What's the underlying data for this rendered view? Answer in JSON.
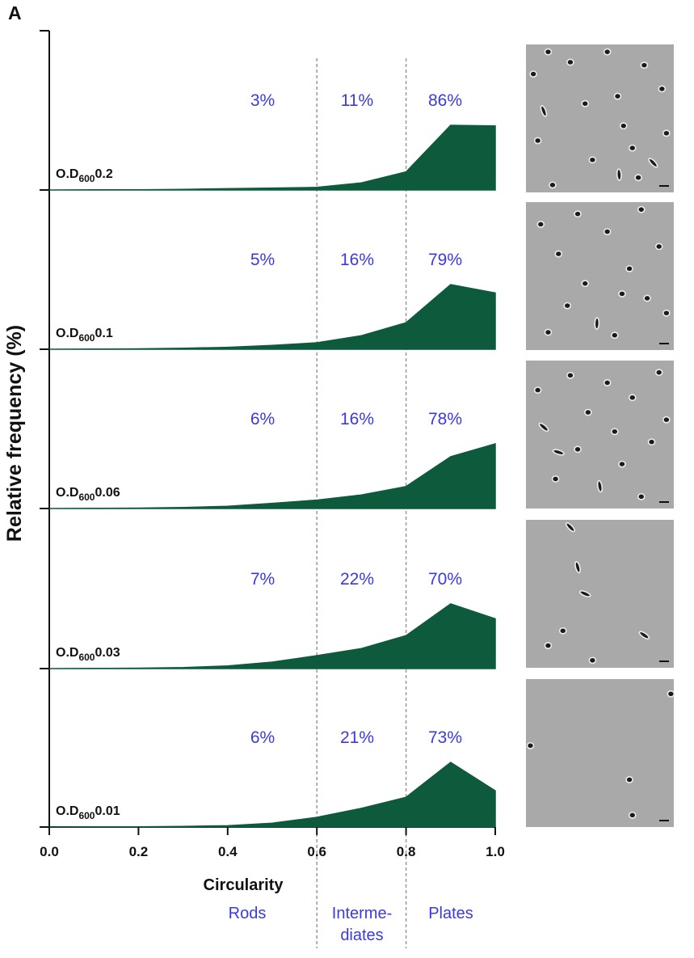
{
  "figure": {
    "panel_letter": "A",
    "ylabel": "Relative frequency (%)",
    "xlabel": "Circularity",
    "class_labels": [
      {
        "id": "rods",
        "lines": [
          "Rods"
        ]
      },
      {
        "id": "intermediates",
        "lines": [
          "Interme-",
          "diates"
        ]
      },
      {
        "id": "plates",
        "lines": [
          "Plates"
        ]
      }
    ],
    "od_prefix": "O.D",
    "od_subscript": "600"
  },
  "chart_data": {
    "type": "area",
    "xlabel": "Circularity",
    "ylabel": "Relative frequency (%)",
    "xlim": [
      0.0,
      1.0
    ],
    "x_ticks": [
      "0.0",
      "0.2",
      "0.4",
      "0.6",
      "0.8",
      "1.0"
    ],
    "thresholds": [
      0.6,
      0.8
    ],
    "x": [
      0.0,
      0.1,
      0.2,
      0.3,
      0.4,
      0.5,
      0.6,
      0.7,
      0.8,
      0.9,
      1.0
    ],
    "color": "#0e5a3c",
    "percent_color": "#3a3ae0",
    "panels": [
      {
        "od": "0.2",
        "percentages": [
          "3%",
          "11%",
          "86%"
        ],
        "values": [
          0.0,
          0.2,
          0.4,
          1.0,
          2.0,
          3.0,
          4.0,
          11.0,
          28.0,
          100.0,
          99.0
        ]
      },
      {
        "od": "0.1",
        "percentages": [
          "5%",
          "16%",
          "79%"
        ],
        "values": [
          0.0,
          0.3,
          0.6,
          1.5,
          3.0,
          6.0,
          10.0,
          21.0,
          41.0,
          100.0,
          87.0
        ]
      },
      {
        "od": "0.06",
        "percentages": [
          "6%",
          "16%",
          "78%"
        ],
        "values": [
          0.0,
          0.3,
          0.6,
          1.5,
          3.5,
          8.0,
          13.0,
          21.0,
          34.0,
          80.0,
          100.0
        ]
      },
      {
        "od": "0.03",
        "percentages": [
          "7%",
          "22%",
          "70%"
        ],
        "values": [
          0.0,
          0.3,
          0.6,
          1.5,
          4.0,
          10.0,
          20.0,
          31.0,
          51.0,
          100.0,
          77.0
        ]
      },
      {
        "od": "0.01",
        "percentages": [
          "6%",
          "21%",
          "73%"
        ],
        "values": [
          0.0,
          0.2,
          0.4,
          1.0,
          2.0,
          6.0,
          15.0,
          29.0,
          46.0,
          100.0,
          56.0
        ]
      }
    ]
  },
  "micrographs": [
    {
      "cells": [
        [
          0.05,
          0.2,
          0
        ],
        [
          0.12,
          0.45,
          1.2
        ],
        [
          0.08,
          0.65,
          0
        ],
        [
          0.18,
          0.95,
          0
        ],
        [
          0.3,
          0.12,
          0
        ],
        [
          0.4,
          0.4,
          0
        ],
        [
          0.45,
          0.78,
          0
        ],
        [
          0.55,
          0.05,
          0
        ],
        [
          0.62,
          0.35,
          0
        ],
        [
          0.66,
          0.55,
          0
        ],
        [
          0.72,
          0.7,
          0
        ],
        [
          0.76,
          0.9,
          0
        ],
        [
          0.8,
          0.14,
          0
        ],
        [
          0.86,
          0.8,
          0.8
        ],
        [
          0.92,
          0.3,
          0
        ],
        [
          0.95,
          0.6,
          0
        ],
        [
          0.15,
          0.05,
          0
        ],
        [
          0.63,
          0.88,
          1.5
        ]
      ]
    },
    {
      "cells": [
        [
          0.1,
          0.15,
          0
        ],
        [
          0.22,
          0.35,
          0
        ],
        [
          0.28,
          0.7,
          0
        ],
        [
          0.35,
          0.08,
          0
        ],
        [
          0.4,
          0.55,
          0
        ],
        [
          0.48,
          0.82,
          1.6
        ],
        [
          0.55,
          0.2,
          0
        ],
        [
          0.6,
          0.9,
          0
        ],
        [
          0.7,
          0.45,
          0
        ],
        [
          0.78,
          0.05,
          0
        ],
        [
          0.82,
          0.65,
          0
        ],
        [
          0.9,
          0.3,
          0
        ],
        [
          0.95,
          0.75,
          0
        ],
        [
          0.65,
          0.62,
          0
        ],
        [
          0.15,
          0.88,
          0
        ]
      ]
    },
    {
      "cells": [
        [
          0.08,
          0.2,
          0
        ],
        [
          0.12,
          0.45,
          0.7
        ],
        [
          0.2,
          0.8,
          0
        ],
        [
          0.3,
          0.1,
          0
        ],
        [
          0.35,
          0.6,
          0
        ],
        [
          0.42,
          0.35,
          0
        ],
        [
          0.5,
          0.85,
          1.4
        ],
        [
          0.55,
          0.15,
          0
        ],
        [
          0.6,
          0.48,
          0
        ],
        [
          0.65,
          0.7,
          0
        ],
        [
          0.72,
          0.25,
          0
        ],
        [
          0.78,
          0.92,
          0
        ],
        [
          0.85,
          0.55,
          0
        ],
        [
          0.9,
          0.08,
          0
        ],
        [
          0.95,
          0.4,
          0
        ],
        [
          0.22,
          0.62,
          0.3
        ]
      ]
    },
    {
      "cells": [
        [
          0.3,
          0.05,
          0.8
        ],
        [
          0.35,
          0.32,
          1.3
        ],
        [
          0.4,
          0.5,
          0.4
        ],
        [
          0.25,
          0.75,
          0
        ],
        [
          0.45,
          0.95,
          0
        ],
        [
          0.8,
          0.78,
          0.6
        ],
        [
          0.15,
          0.85,
          0
        ]
      ]
    },
    {
      "cells": [
        [
          0.03,
          0.45,
          0
        ],
        [
          0.7,
          0.68,
          0
        ],
        [
          0.72,
          0.92,
          0
        ],
        [
          0.98,
          0.1,
          0
        ]
      ]
    }
  ]
}
